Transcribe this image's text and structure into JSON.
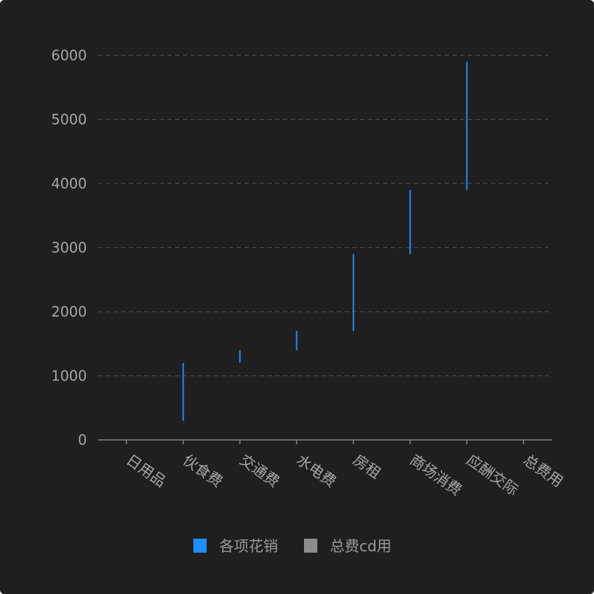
{
  "chart_data": {
    "type": "bar",
    "subtype": "waterfall",
    "categories": [
      "日用品",
      "伙食费",
      "交通费",
      "水电费",
      "房租",
      "商场消费",
      "应酬交际",
      "总费用"
    ],
    "series": [
      {
        "name": "各项花销",
        "color": "#1f8fff",
        "ranges": [
          [
            0,
            0
          ],
          [
            300,
            1200
          ],
          [
            1200,
            1400
          ],
          [
            1400,
            1700
          ],
          [
            1700,
            2900
          ],
          [
            2900,
            3900
          ],
          [
            3900,
            5900
          ],
          [
            0,
            0
          ]
        ]
      },
      {
        "name": "总费cd用",
        "color": "#8c8c8c",
        "values": [
          0,
          0,
          0,
          0,
          0,
          0,
          0,
          0
        ]
      }
    ],
    "yticks": [
      "0",
      "1000",
      "2000",
      "3000",
      "4000",
      "5000",
      "6000"
    ],
    "ylim": [
      0,
      6000
    ],
    "grid": true,
    "legend_position": "bottom"
  },
  "colors": {
    "background": "#1f1f1f",
    "grid": "#4a4a4a",
    "axis": "#8a8a8a",
    "text": "#a6a6a6"
  }
}
